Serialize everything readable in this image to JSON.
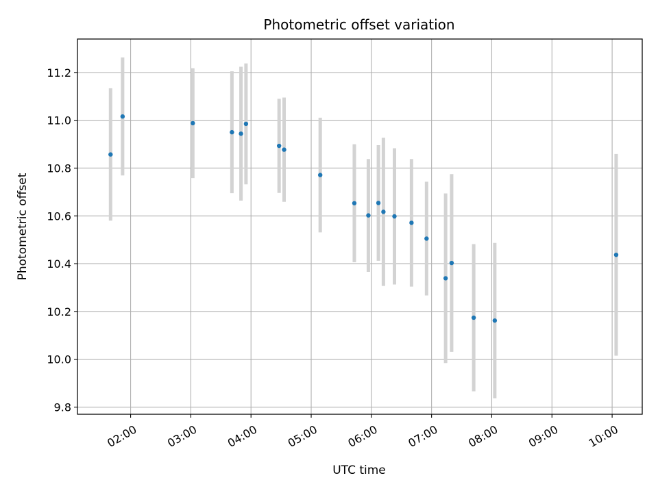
{
  "chart_data": {
    "type": "scatter",
    "title": "Photometric offset variation",
    "xlabel": "UTC time",
    "ylabel": "Photometric offset",
    "x_unit": "time (HH:MM UTC)",
    "xlim": [
      "01:07",
      "10:30"
    ],
    "ylim": [
      9.77,
      11.34
    ],
    "x_ticks": [
      "02:00",
      "03:00",
      "04:00",
      "05:00",
      "06:00",
      "07:00",
      "08:00",
      "09:00",
      "10:00"
    ],
    "y_ticks": [
      "9.8",
      "10.0",
      "10.2",
      "10.4",
      "10.6",
      "10.8",
      "11.0",
      "11.2"
    ],
    "grid": true,
    "marker_color": "#1f77b4",
    "errorbar_color": "#d3d3d3",
    "series": [
      {
        "points": [
          {
            "x": "01:40",
            "y": 10.857,
            "err": 0.277
          },
          {
            "x": "01:52",
            "y": 11.016,
            "err": 0.247
          },
          {
            "x": "03:02",
            "y": 10.988,
            "err": 0.23
          },
          {
            "x": "03:41",
            "y": 10.95,
            "err": 0.255
          },
          {
            "x": "03:50",
            "y": 10.944,
            "err": 0.28
          },
          {
            "x": "03:55",
            "y": 10.985,
            "err": 0.253
          },
          {
            "x": "04:28",
            "y": 10.893,
            "err": 0.197
          },
          {
            "x": "04:33",
            "y": 10.877,
            "err": 0.218
          },
          {
            "x": "05:09",
            "y": 10.771,
            "err": 0.24
          },
          {
            "x": "05:43",
            "y": 10.653,
            "err": 0.247
          },
          {
            "x": "05:57",
            "y": 10.602,
            "err": 0.236
          },
          {
            "x": "06:07",
            "y": 10.654,
            "err": 0.242
          },
          {
            "x": "06:12",
            "y": 10.617,
            "err": 0.31
          },
          {
            "x": "06:23",
            "y": 10.598,
            "err": 0.285
          },
          {
            "x": "06:40",
            "y": 10.571,
            "err": 0.267
          },
          {
            "x": "06:55",
            "y": 10.505,
            "err": 0.238
          },
          {
            "x": "07:14",
            "y": 10.339,
            "err": 0.355
          },
          {
            "x": "07:20",
            "y": 10.403,
            "err": 0.372
          },
          {
            "x": "07:42",
            "y": 10.174,
            "err": 0.308
          },
          {
            "x": "08:03",
            "y": 10.162,
            "err": 0.325
          },
          {
            "x": "10:04",
            "y": 10.437,
            "err": 0.422
          }
        ]
      }
    ]
  }
}
